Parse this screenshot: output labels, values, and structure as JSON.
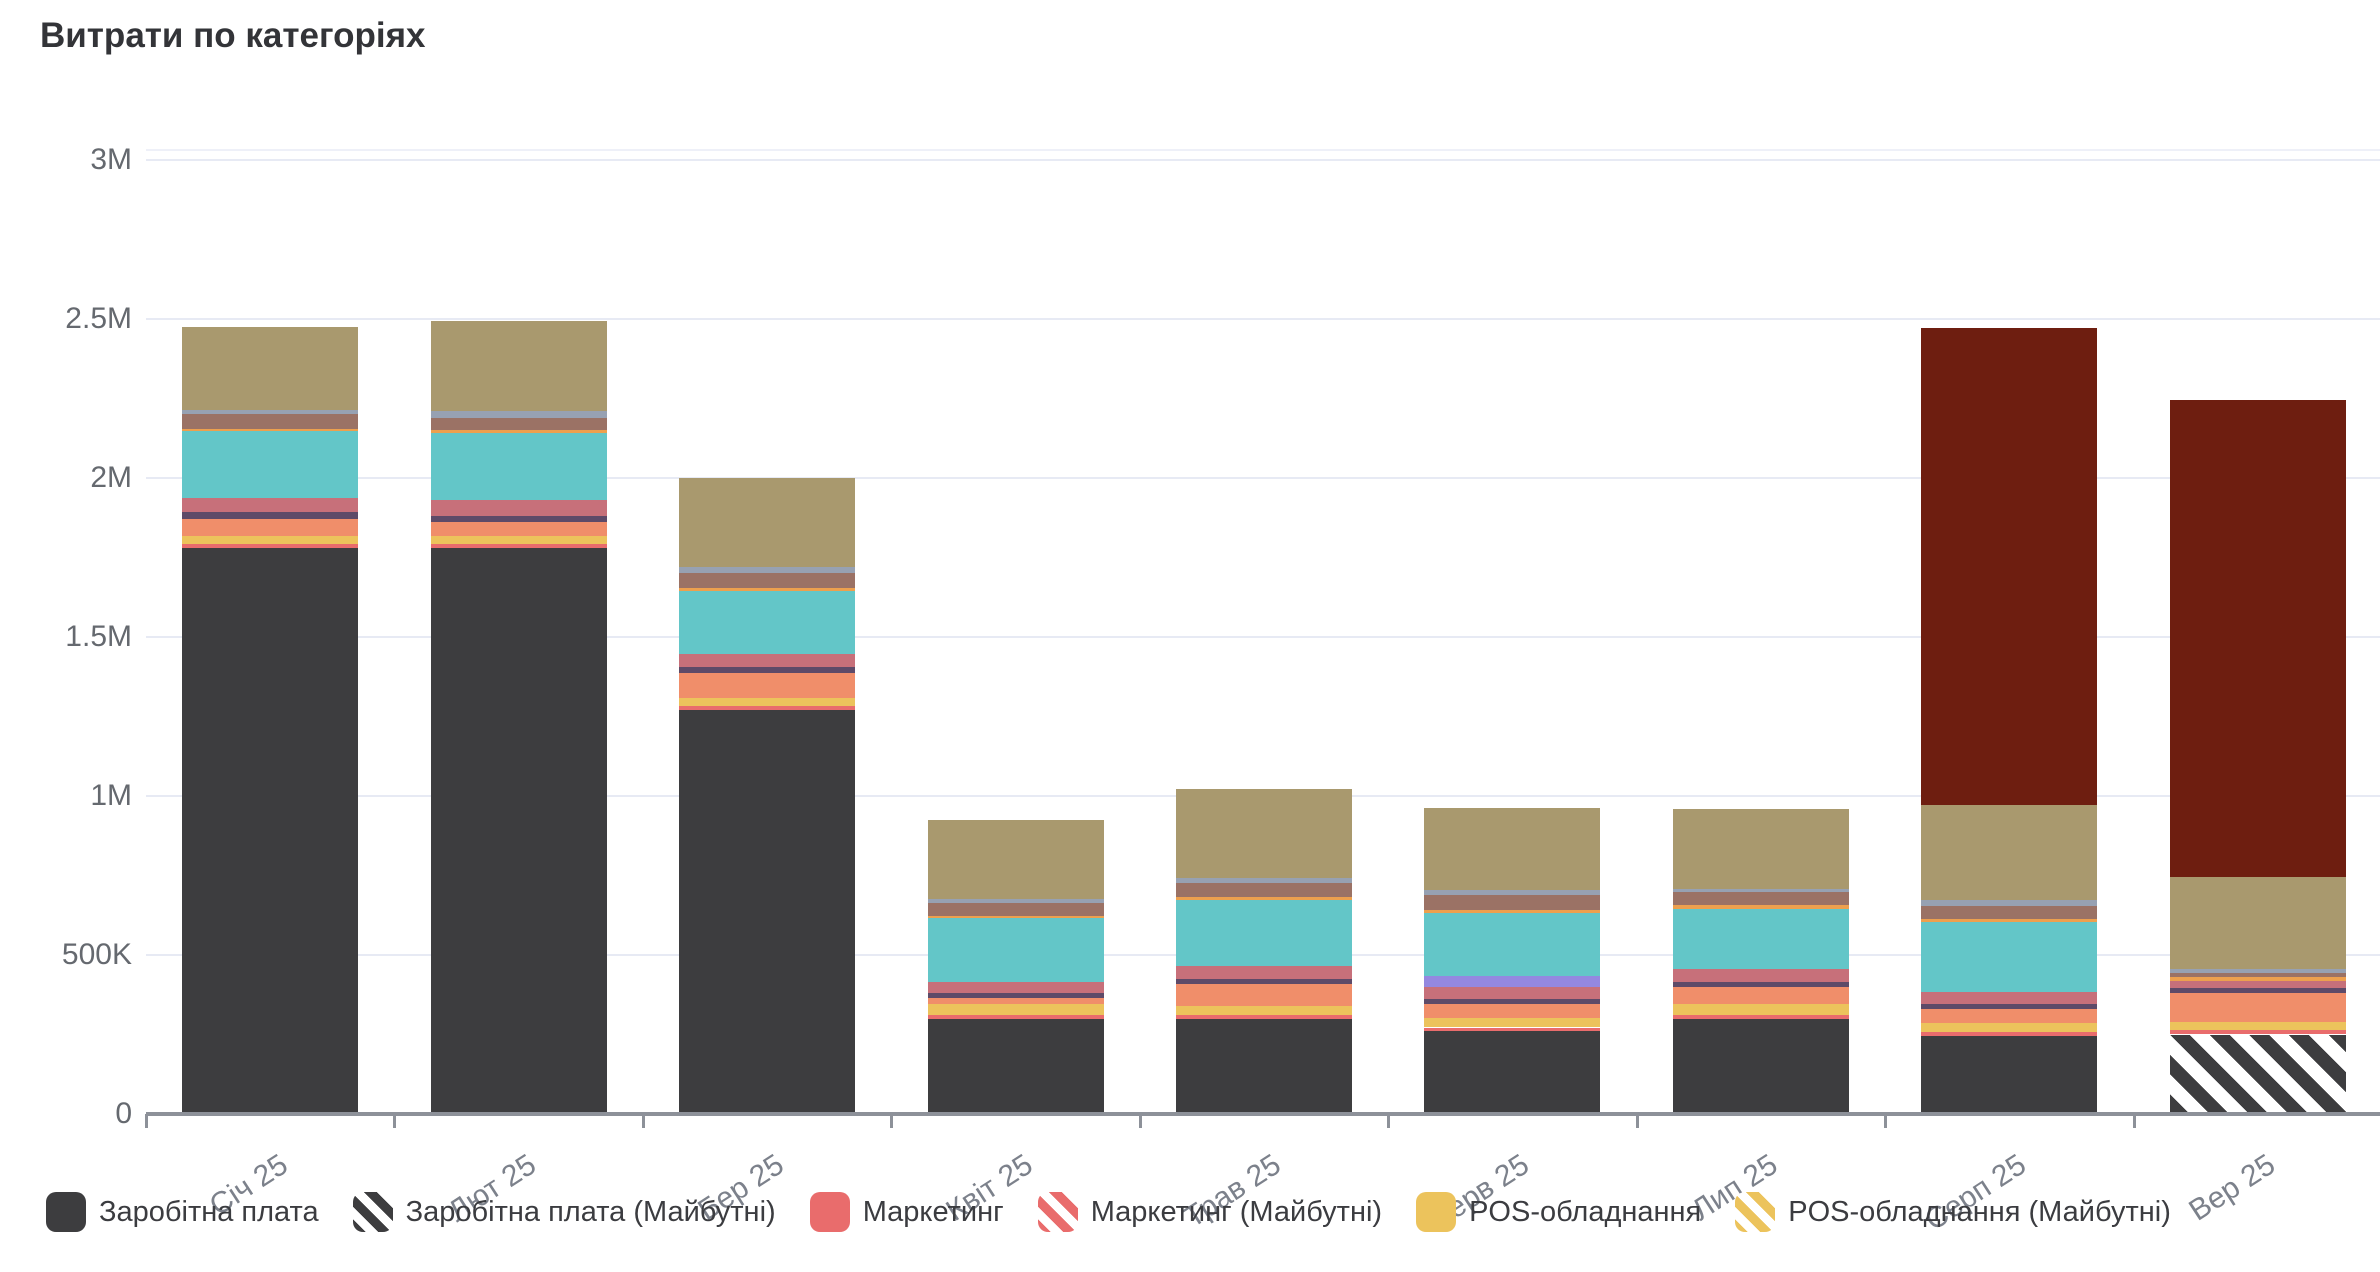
{
  "chart_data": {
    "type": "bar",
    "variant": "stacked",
    "title": "Витрати по категоріях",
    "categories": [
      "Січ 25",
      "Лют 25",
      "Бер 25",
      "Квіт 25",
      "Трав 25",
      "Черв 25",
      "Лип 25",
      "Серп 25",
      "Вер 25"
    ],
    "y_axis": {
      "min": 0,
      "max": 3000000,
      "ticks": [
        {
          "label": "3M",
          "value": 3000000
        },
        {
          "label": "2.5M",
          "value": 2500000
        },
        {
          "label": "2M",
          "value": 2000000
        },
        {
          "label": "1.5M",
          "value": 1500000
        },
        {
          "label": "1M",
          "value": 1000000
        },
        {
          "label": "500K",
          "value": 500000
        },
        {
          "label": "0",
          "value": 0
        }
      ]
    },
    "x_axis": {
      "label_rotation_deg": -33
    },
    "grid": true,
    "legend": {
      "position": "bottom",
      "series_ids": [
        "salary",
        "salary_future",
        "marketing",
        "marketing_future",
        "pos",
        "pos_future"
      ]
    },
    "series": [
      {
        "id": "salary",
        "label": "Заробітна плата",
        "color": "#3d3d3f",
        "pattern": "solid",
        "values": [
          1780000,
          1780000,
          1270000,
          300000,
          300000,
          260000,
          300000,
          245000,
          0
        ]
      },
      {
        "id": "salary_future",
        "label": "Заробітна плата (Майбутні)",
        "color": "#3d3d3f",
        "pattern": "stripes",
        "values": [
          0,
          0,
          0,
          0,
          0,
          0,
          0,
          0,
          250000
        ]
      },
      {
        "id": "marketing",
        "label": "Маркетинг",
        "color": "#e96c6c",
        "pattern": "solid",
        "values": [
          12000,
          12000,
          12000,
          10000,
          10000,
          12000,
          10000,
          12000,
          13000
        ]
      },
      {
        "id": "marketing_future",
        "label": "Маркетинг (Майбутні)",
        "color": "#e96c6c",
        "pattern": "stripes",
        "values": [
          0,
          0,
          0,
          0,
          0,
          0,
          0,
          0,
          0
        ]
      },
      {
        "id": "pos",
        "label": "POS-обладнання",
        "color": "#ecc35c",
        "pattern": "solid",
        "values": [
          25000,
          25000,
          25000,
          35000,
          30000,
          30000,
          35000,
          28000,
          27000
        ]
      },
      {
        "id": "pos_future",
        "label": "POS-обладнання (Майбутні)",
        "color": "#ecc35c",
        "pattern": "stripes",
        "values": [
          0,
          0,
          0,
          0,
          0,
          0,
          0,
          0,
          0
        ]
      },
      {
        "id": "unlabeled_salmon",
        "label": "",
        "color": "#f08e6a",
        "pattern": "solid",
        "values": [
          55000,
          45000,
          80000,
          20000,
          70000,
          45000,
          55000,
          45000,
          90000
        ]
      },
      {
        "id": "unlabeled_dark_purple",
        "label": "",
        "color": "#5e4a68",
        "pattern": "solid",
        "values": [
          20000,
          20000,
          18000,
          15000,
          16000,
          16000,
          15000,
          15000,
          16000
        ]
      },
      {
        "id": "unlabeled_rose",
        "label": "",
        "color": "#c7707a",
        "pattern": "solid",
        "values": [
          45000,
          50000,
          40000,
          35000,
          38000,
          35000,
          40000,
          40000,
          22000
        ]
      },
      {
        "id": "unlabeled_lavender",
        "label": "",
        "color": "#9488e0",
        "pattern": "solid",
        "values": [
          0,
          0,
          0,
          0,
          0,
          35000,
          0,
          0,
          0
        ]
      },
      {
        "id": "unlabeled_teal",
        "label": "",
        "color": "#63c6c8",
        "pattern": "solid",
        "values": [
          210000,
          210000,
          200000,
          200000,
          210000,
          200000,
          190000,
          220000,
          0
        ]
      },
      {
        "id": "unlabeled_orange",
        "label": "",
        "color": "#eda04e",
        "pattern": "solid",
        "values": [
          8000,
          8000,
          10000,
          8000,
          8000,
          10000,
          12000,
          8000,
          12000
        ]
      },
      {
        "id": "unlabeled_brown",
        "label": "",
        "color": "#9b7265",
        "pattern": "solid",
        "values": [
          45000,
          40000,
          45000,
          40000,
          45000,
          45000,
          40000,
          40000,
          14000
        ]
      },
      {
        "id": "unlabeled_slate",
        "label": "",
        "color": "#97a1b2",
        "pattern": "solid",
        "values": [
          15000,
          20000,
          20000,
          12000,
          15000,
          15000,
          12000,
          20000,
          12000
        ]
      },
      {
        "id": "unlabeled_tan",
        "label": "",
        "color": "#a9996e",
        "pattern": "solid",
        "values": [
          260000,
          285000,
          280000,
          250000,
          280000,
          260000,
          250000,
          300000,
          290000
        ]
      },
      {
        "id": "unlabeled_maroon",
        "label": "",
        "color": "#6e1e10",
        "pattern": "solid",
        "values": [
          0,
          0,
          0,
          0,
          0,
          0,
          0,
          1500000,
          1500000
        ]
      }
    ]
  }
}
